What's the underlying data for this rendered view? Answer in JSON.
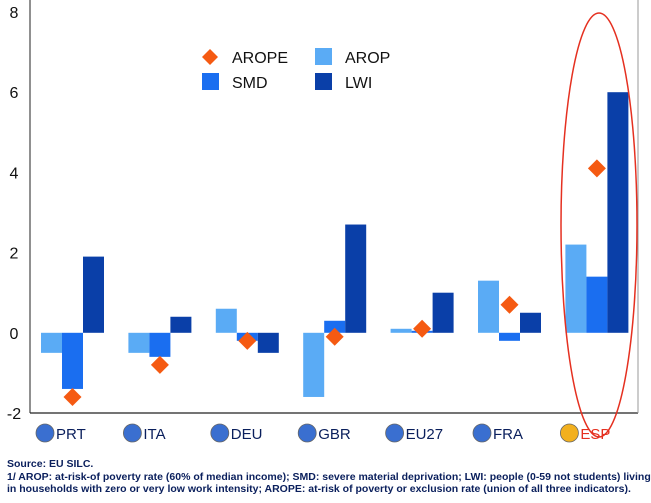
{
  "chart_data": {
    "type": "bar",
    "categories": [
      "PRT",
      "ITA",
      "DEU",
      "GBR",
      "EU27",
      "FRA",
      "ESP"
    ],
    "highlighted_category": "ESP",
    "series": [
      {
        "name": "AROP",
        "kind": "bar",
        "color": "#5aabf5",
        "values": [
          -0.5,
          -0.5,
          0.6,
          -1.6,
          0.1,
          1.3,
          2.2
        ]
      },
      {
        "name": "SMD",
        "kind": "bar",
        "color": "#1a6ef0",
        "values": [
          -1.4,
          -0.6,
          -0.2,
          0.3,
          0.05,
          -0.2,
          1.4
        ]
      },
      {
        "name": "LWI",
        "kind": "bar",
        "color": "#0a3fa8",
        "values": [
          1.9,
          0.4,
          -0.5,
          2.7,
          1.0,
          0.5,
          6.0
        ]
      },
      {
        "name": "AROPE",
        "kind": "marker",
        "color": "#f55a12",
        "values": [
          -1.6,
          -0.8,
          -0.2,
          -0.1,
          0.1,
          0.7,
          4.1
        ]
      }
    ],
    "ylim": [
      -2,
      8
    ],
    "yticks": [
      "-2",
      "0",
      "2",
      "4",
      "6",
      "8"
    ],
    "title": "",
    "xlabel": "",
    "ylabel": "",
    "legend_position": "top-center",
    "grid": false
  },
  "notes": {
    "source": "Source: EU SILC.",
    "line1": "1/ AROP: at-risk-of poverty rate (60% of median income); SMD: severe material deprivation; LWI: people (0-59 not students) living",
    "line2": "in households with zero or very low work intensity; AROPE: at-risk of poverty or exclusion rate (union of all three indicators)."
  },
  "colors": {
    "highlight": "#e53020",
    "axis": "#222222"
  }
}
